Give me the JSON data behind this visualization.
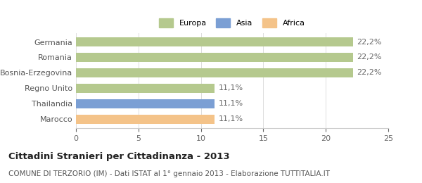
{
  "categories": [
    "Marocco",
    "Thailandia",
    "Regno Unito",
    "Bosnia-Erzegovina",
    "Romania",
    "Germania"
  ],
  "values": [
    11.1,
    11.1,
    11.1,
    22.2,
    22.2,
    22.2
  ],
  "bar_colors": [
    "#f4c389",
    "#7b9fd4",
    "#b5c98e",
    "#b5c98e",
    "#b5c98e",
    "#b5c98e"
  ],
  "bar_labels": [
    "11,1%",
    "11,1%",
    "11,1%",
    "22,2%",
    "22,2%",
    "22,2%"
  ],
  "legend_labels": [
    "Europa",
    "Asia",
    "Africa"
  ],
  "legend_colors": [
    "#b5c98e",
    "#7b9fd4",
    "#f4c389"
  ],
  "title": "Cittadini Stranieri per Cittadinanza - 2013",
  "subtitle": "COMUNE DI TERZORIO (IM) - Dati ISTAT al 1° gennaio 2013 - Elaborazione TUTTITALIA.IT",
  "xlim": [
    0,
    25
  ],
  "xticks": [
    0,
    5,
    10,
    15,
    20,
    25
  ],
  "background_color": "#ffffff",
  "bar_label_fontsize": 8,
  "tick_fontsize": 8,
  "title_fontsize": 9.5,
  "subtitle_fontsize": 7.5
}
